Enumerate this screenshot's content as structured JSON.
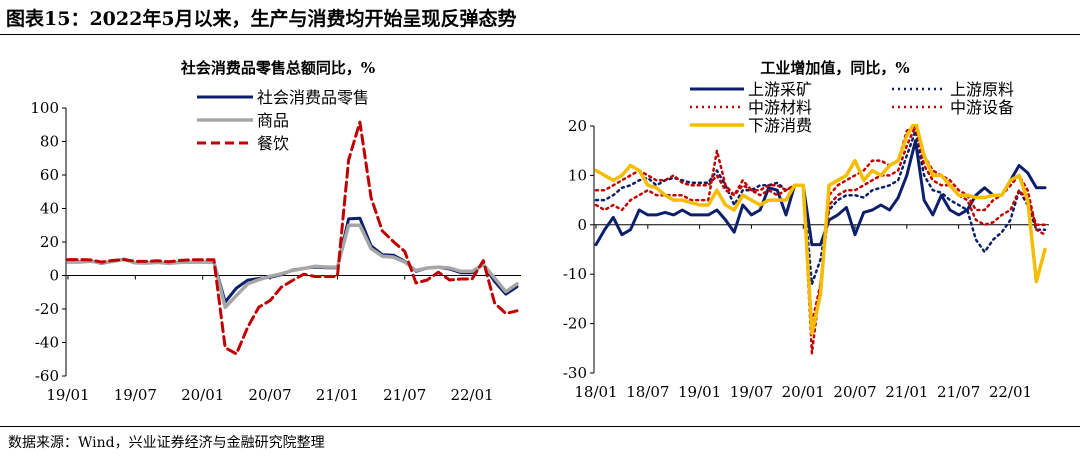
{
  "figure_title": "图表15：2022年5月以来，生产与消费均开始呈现反弹态势",
  "source_note": "数据来源：Wind，兴业证券经济与金融研究院整理",
  "chart_data": [
    {
      "type": "line",
      "title": "社会消费品零售总额同比，%",
      "ylim": [
        -60,
        100
      ],
      "yticks": [
        -60,
        -40,
        -20,
        0,
        20,
        40,
        60,
        80,
        100
      ],
      "xticks": [
        "19/01",
        "19/07",
        "20/01",
        "20/07",
        "21/01",
        "21/07",
        "22/01"
      ],
      "legend_position": "top-center",
      "x": [
        "19/01",
        "19/02",
        "19/03",
        "19/04",
        "19/05",
        "19/06",
        "19/07",
        "19/08",
        "19/09",
        "19/10",
        "19/11",
        "19/12",
        "20/01",
        "20/02",
        "20/03",
        "20/04",
        "20/05",
        "20/06",
        "20/07",
        "20/08",
        "20/09",
        "20/10",
        "20/11",
        "20/12",
        "21/01",
        "21/02",
        "21/03",
        "21/04",
        "21/05",
        "21/06",
        "21/07",
        "21/08",
        "21/09",
        "21/10",
        "21/11",
        "21/12",
        "22/01",
        "22/02",
        "22/03",
        "22/04",
        "22/05"
      ],
      "series": [
        {
          "name": "社会消费品零售",
          "color": "#0b1f6b",
          "dash": "solid",
          "width": 3,
          "values": [
            8.2,
            8.2,
            8.7,
            7.2,
            8.6,
            9.8,
            7.6,
            7.5,
            7.8,
            7.2,
            8.0,
            8.0,
            8.0,
            8.0,
            -15.8,
            -7.5,
            -2.8,
            -1.8,
            -1.1,
            0.5,
            3.3,
            4.3,
            5.0,
            4.6,
            4.6,
            33.8,
            34.2,
            17.7,
            12.4,
            12.1,
            8.5,
            2.5,
            4.4,
            4.9,
            3.9,
            1.7,
            1.7,
            6.7,
            -3.5,
            -11.1,
            -6.7
          ]
        },
        {
          "name": "商品",
          "color": "#a6a6a6",
          "dash": "solid",
          "width": 3.5,
          "values": [
            8.0,
            8.0,
            8.5,
            7.5,
            8.4,
            9.6,
            7.5,
            7.4,
            7.8,
            7.2,
            7.8,
            8.0,
            8.0,
            8.0,
            -19.0,
            -12.0,
            -5.0,
            -2.5,
            -0.5,
            1.0,
            3.0,
            4.2,
            5.5,
            5.0,
            5.0,
            30.0,
            30.0,
            16.0,
            11.5,
            11.0,
            8.0,
            3.0,
            4.5,
            5.0,
            4.5,
            2.5,
            2.5,
            6.5,
            -1.5,
            -9.7,
            -5.0
          ]
        },
        {
          "name": "餐饮",
          "color": "#c00000",
          "dash": "dashed",
          "width": 3,
          "values": [
            9.5,
            9.5,
            9.3,
            8.0,
            9.0,
            9.5,
            8.5,
            8.4,
            8.8,
            8.2,
            9.0,
            9.4,
            9.4,
            9.4,
            -43.1,
            -46.8,
            -31.0,
            -18.9,
            -15.0,
            -7.0,
            -3.0,
            0.8,
            -0.6,
            -0.6,
            -0.6,
            68.9,
            91.6,
            46.4,
            26.6,
            20.2,
            14.3,
            -4.5,
            -2.7,
            2.0,
            -2.7,
            -2.1,
            -2.1,
            8.9,
            -16.4,
            -22.7,
            -21.1
          ]
        }
      ]
    },
    {
      "type": "line",
      "title": "工业增加值，同比，%",
      "ylim": [
        -30,
        20
      ],
      "yticks": [
        -30,
        -20,
        -10,
        0,
        10,
        20
      ],
      "xticks": [
        "18/01",
        "18/07",
        "19/01",
        "19/07",
        "20/01",
        "20/07",
        "21/01",
        "21/07",
        "22/01"
      ],
      "legend_position": "top",
      "x": [
        "18/01",
        "18/02",
        "18/03",
        "18/04",
        "18/05",
        "18/06",
        "18/07",
        "18/08",
        "18/09",
        "18/10",
        "18/11",
        "18/12",
        "19/01",
        "19/02",
        "19/03",
        "19/04",
        "19/05",
        "19/06",
        "19/07",
        "19/08",
        "19/09",
        "19/10",
        "19/11",
        "19/12",
        "20/01",
        "20/02",
        "20/03",
        "20/04",
        "20/05",
        "20/06",
        "20/07",
        "20/08",
        "20/09",
        "20/10",
        "20/11",
        "20/12",
        "21/01",
        "21/02",
        "21/03",
        "21/04",
        "21/05",
        "21/06",
        "21/07",
        "21/08",
        "21/09",
        "21/10",
        "21/11",
        "21/12",
        "22/01",
        "22/02",
        "22/03",
        "22/04",
        "22/05"
      ],
      "series": [
        {
          "name": "上游采矿",
          "color": "#0b1f6b",
          "dash": "solid",
          "width": 3,
          "values": [
            -4,
            -1,
            1.5,
            -2,
            -1,
            3,
            2,
            2,
            2.5,
            2,
            3,
            2,
            2,
            2,
            3,
            1,
            -1.5,
            4,
            2,
            3,
            7.5,
            7,
            2,
            8,
            8,
            -4,
            -4,
            1,
            2,
            3.5,
            -2,
            2.5,
            3,
            4,
            3,
            5.5,
            10,
            17,
            5,
            2,
            6,
            3,
            2,
            3,
            6,
            7.5,
            6,
            6,
            9,
            12,
            10.5,
            7.5,
            7.5
          ]
        },
        {
          "name": "上游原料",
          "color": "#0b1f6b",
          "dash": "dotted",
          "width": 2.5,
          "values": [
            5,
            5,
            6,
            7.5,
            8,
            9,
            9.5,
            8,
            9,
            9.5,
            9,
            8.5,
            8.5,
            8.5,
            11,
            8,
            4,
            7,
            7,
            8,
            8,
            8.5,
            7,
            8,
            8,
            -12,
            -7,
            3,
            5,
            6,
            6,
            5.5,
            7,
            7.5,
            8,
            9,
            14,
            19,
            10,
            7,
            6.5,
            5,
            4,
            3,
            -3,
            -5.5,
            -3,
            -1.5,
            1,
            7,
            4,
            -1,
            -1
          ]
        },
        {
          "name": "中游材料",
          "color": "#c00000",
          "dash": "dotted",
          "width": 2.5,
          "values": [
            7,
            7,
            8,
            9,
            10,
            11,
            10,
            9,
            9,
            10,
            8.5,
            8,
            8,
            8,
            10,
            7,
            6,
            8,
            7,
            7,
            8,
            8,
            7,
            8,
            8,
            -20,
            -12,
            4,
            6,
            7,
            7,
            8,
            9,
            10,
            10,
            11,
            16,
            20,
            12,
            9,
            8,
            8,
            6,
            5,
            1,
            0,
            0.5,
            2,
            3,
            7,
            5,
            0,
            0
          ]
        },
        {
          "name": "中游设备",
          "color": "#c00000",
          "dash": "dotted",
          "width": 2.5,
          "values": [
            4,
            3,
            4,
            3,
            5,
            6,
            7,
            6,
            6,
            6,
            6,
            5,
            5,
            5,
            15,
            8,
            6,
            9,
            7,
            6,
            7,
            6,
            7,
            8,
            8,
            -26,
            -12,
            6,
            8,
            9,
            10,
            11,
            13,
            13,
            12,
            13,
            19,
            20,
            14,
            11,
            10,
            9,
            7,
            6,
            3,
            3,
            5,
            6,
            8,
            10,
            7,
            -1,
            -2
          ]
        },
        {
          "name": "下游消费",
          "color": "#f5bd00",
          "dash": "solid",
          "width": 3.5,
          "values": [
            11,
            10,
            9,
            10,
            12,
            11,
            8,
            7.5,
            6,
            5,
            5,
            4.5,
            4,
            4,
            7,
            4,
            3,
            6,
            5,
            4,
            5,
            5,
            5,
            8,
            8,
            -22,
            -14,
            8,
            9,
            10,
            13,
            9,
            11,
            10,
            12,
            13,
            18,
            21,
            14,
            10,
            10,
            8,
            6,
            6,
            5.5,
            5.5,
            6,
            6,
            9,
            10,
            5,
            -11.5,
            -5
          ]
        }
      ]
    }
  ]
}
